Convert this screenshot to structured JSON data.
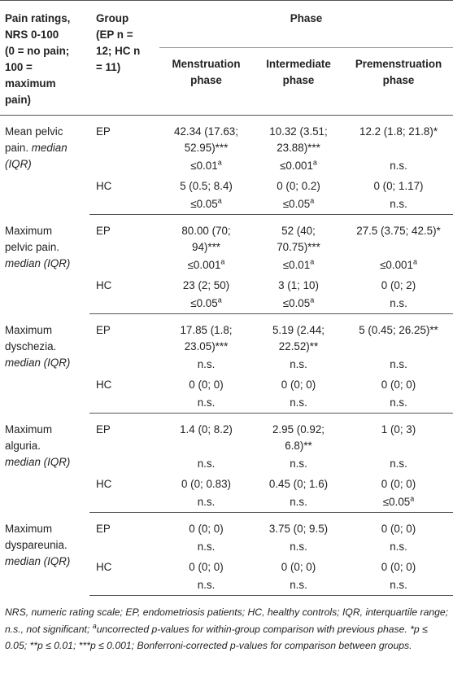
{
  "header": {
    "col1_lines": [
      "Pain ratings,",
      "NRS 0-100",
      "(0 = no pain;",
      "100 =",
      "maximum",
      "pain)"
    ],
    "col2_lines": [
      "Group",
      "(EP n =",
      "12; HC n",
      "= 11)"
    ],
    "phase": "Phase",
    "sub": [
      [
        "Menstruation",
        "phase"
      ],
      [
        "Intermediate",
        "phase"
      ],
      [
        "Premenstruation",
        "phase"
      ]
    ]
  },
  "blocks": [
    {
      "label_lines": [
        "Mean pelvic",
        "pain."
      ],
      "label_italic": "median",
      "label_italic2": "(IQR)",
      "label_variant": "a",
      "rows": [
        {
          "group": "EP",
          "vals": [
            "42.34 (17.63;\n52.95)***",
            "10.32 (3.51;\n23.88)***",
            "12.2 (1.8; 21.8)*"
          ],
          "p": [
            "≤0.01a",
            "≤0.001a",
            "n.s."
          ]
        },
        {
          "group": "HC",
          "vals": [
            "5 (0.5; 8.4)",
            "0 (0; 0.2)",
            "0 (0; 1.17)"
          ],
          "p": [
            "≤0.05a",
            "≤0.05a",
            "n.s."
          ]
        }
      ]
    },
    {
      "rows": [
        {
          "group": "EP",
          "vals": [
            "80.00 (70;\n94)***",
            "52 (40;\n70.75)***",
            "27.5 (3.75; 42.5)*"
          ],
          "p": [
            "≤0.001a",
            "≤0.01a",
            "≤0.001a"
          ]
        },
        {
          "group": "HC",
          "vals": [
            "23 (2; 50)",
            "3 (1; 10)",
            "0 (0; 2)"
          ],
          "p": [
            "≤0.05a",
            "≤0.05a",
            "n.s."
          ]
        }
      ]
    },
    {
      "rows": [
        {
          "group": "EP",
          "vals": [
            "17.85 (1.8;\n23.05)***",
            "5.19 (2.44;\n22.52)**",
            "5 (0.45; 26.25)**"
          ],
          "p": [
            "n.s.",
            "n.s.",
            "n.s."
          ]
        },
        {
          "group": "HC",
          "vals": [
            "0 (0; 0)",
            "0 (0; 0)",
            "0 (0; 0)"
          ],
          "p": [
            "n.s.",
            "n.s.",
            "n.s."
          ]
        }
      ]
    },
    {
      "rows": [
        {
          "group": "EP",
          "vals": [
            "1.4 (0; 8.2)",
            "2.95 (0.92;\n6.8)**",
            "1 (0; 3)"
          ],
          "p": [
            "n.s.",
            "n.s.",
            "n.s."
          ]
        },
        {
          "group": "HC",
          "vals": [
            "0 (0; 0.83)",
            "0.45 (0; 1.6)",
            "0 (0; 0)"
          ],
          "p": [
            "n.s.",
            "n.s.",
            "≤0.05a"
          ]
        }
      ]
    },
    {
      "rows": [
        {
          "group": "EP",
          "vals": [
            "0 (0; 0)",
            "3.75 (0; 9.5)",
            "0 (0; 0)"
          ],
          "p": [
            "n.s.",
            "n.s.",
            "n.s."
          ]
        },
        {
          "group": "HC",
          "vals": [
            "0 (0; 0)",
            "0 (0; 0)",
            "0 (0; 0)"
          ],
          "p": [
            "n.s.",
            "n.s.",
            "n.s."
          ]
        }
      ]
    }
  ],
  "labels": {
    "b1": [
      "Mean pelvic",
      "pain.",
      "median",
      "(IQR)"
    ],
    "b2": [
      "Maximum",
      "pelvic pain.",
      "median (IQR)"
    ],
    "b3": [
      "Maximum",
      "dyschezia.",
      "median (IQR)"
    ],
    "b4": [
      "Maximum",
      "alguria.",
      "median (IQR)"
    ],
    "b5": [
      "Maximum",
      "dyspareunia.",
      "median (IQR)"
    ]
  },
  "footnote": {
    "t1": "NRS, numeric rating scale; EP, endometriosis patients; HC, healthy controls; IQR, interquartile range; n.s., not significant; ",
    "sup_a": "a",
    "t2": "uncorrected p-values for within-group comparison with previous phase. *p ≤ 0.05; **p ≤ 0.01; ***p ≤ 0.001; Bonferroni-corrected p-values for comparison between groups."
  }
}
